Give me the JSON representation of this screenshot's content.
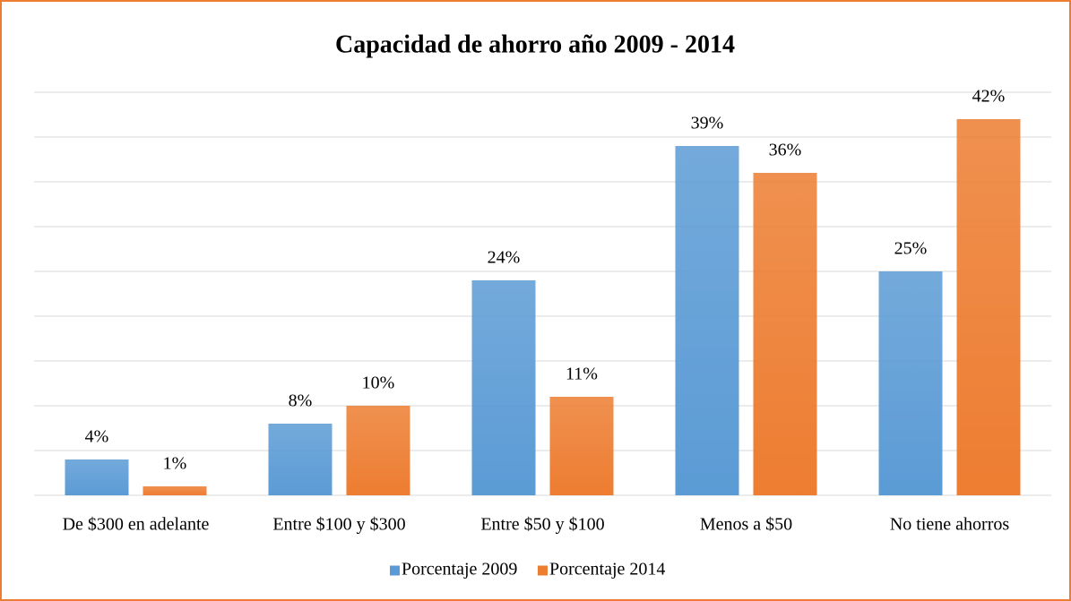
{
  "chart_data": {
    "type": "bar",
    "title": "Capacidad de ahorro año 2009 - 2014",
    "categories": [
      "De $300 en adelante",
      "Entre $100 y $300",
      "Entre $50 y $100",
      "Menos a $50",
      "No tiene ahorros"
    ],
    "series": [
      {
        "name": "Porcentaje 2009",
        "color": "#5b9bd5",
        "values": [
          4,
          8,
          24,
          39,
          25
        ],
        "value_labels": [
          "4%",
          "8%",
          "24%",
          "39%",
          "25%"
        ]
      },
      {
        "name": "Porcentaje 2014",
        "color": "#ed7d31",
        "values": [
          1,
          10,
          11,
          36,
          42
        ],
        "value_labels": [
          "1%",
          "10%",
          "11%",
          "36%",
          "42%"
        ]
      }
    ],
    "ylim": [
      0,
      45
    ],
    "yticks": [
      0,
      5,
      10,
      15,
      20,
      25,
      30,
      35,
      40,
      45
    ],
    "grid": true,
    "legend": "bottom"
  }
}
